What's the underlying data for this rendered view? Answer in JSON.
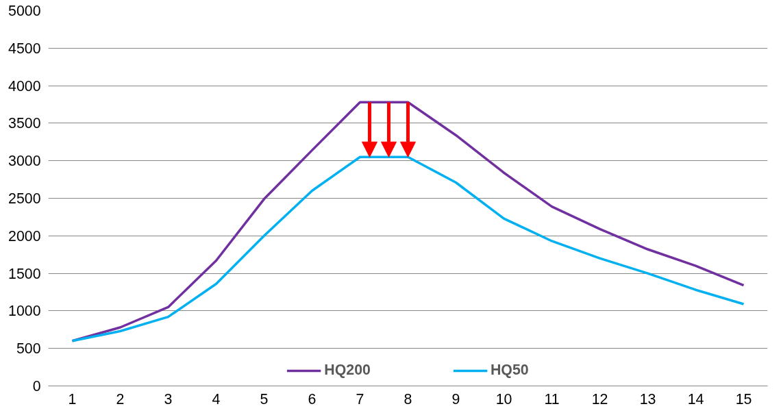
{
  "chart_data": {
    "type": "line",
    "x": [
      1,
      2,
      3,
      4,
      5,
      6,
      7,
      8,
      9,
      10,
      11,
      12,
      13,
      14,
      15
    ],
    "xlim": [
      0.5,
      15.5
    ],
    "xticks": [
      1,
      2,
      3,
      4,
      5,
      6,
      7,
      8,
      9,
      10,
      11,
      12,
      13,
      14,
      15
    ],
    "series": [
      {
        "name": "HQ200",
        "color": "#7030a0",
        "values": [
          600,
          780,
          1050,
          1670,
          2490,
          3140,
          3780,
          3780,
          3340,
          2840,
          2390,
          2090,
          1820,
          1600,
          1340
        ]
      },
      {
        "name": "HQ50",
        "color": "#00b0f0",
        "values": [
          600,
          730,
          920,
          1360,
          2000,
          2600,
          3050,
          3050,
          2710,
          2230,
          1930,
          1700,
          1500,
          1280,
          1090
        ]
      }
    ],
    "ylim": [
      0,
      5000
    ],
    "yticks": [
      0,
      500,
      1000,
      1500,
      2000,
      2500,
      3000,
      3500,
      4000,
      4500,
      5000
    ],
    "grid": "y",
    "legend": "bottom",
    "marker": "none",
    "line_style": "solid"
  }
}
